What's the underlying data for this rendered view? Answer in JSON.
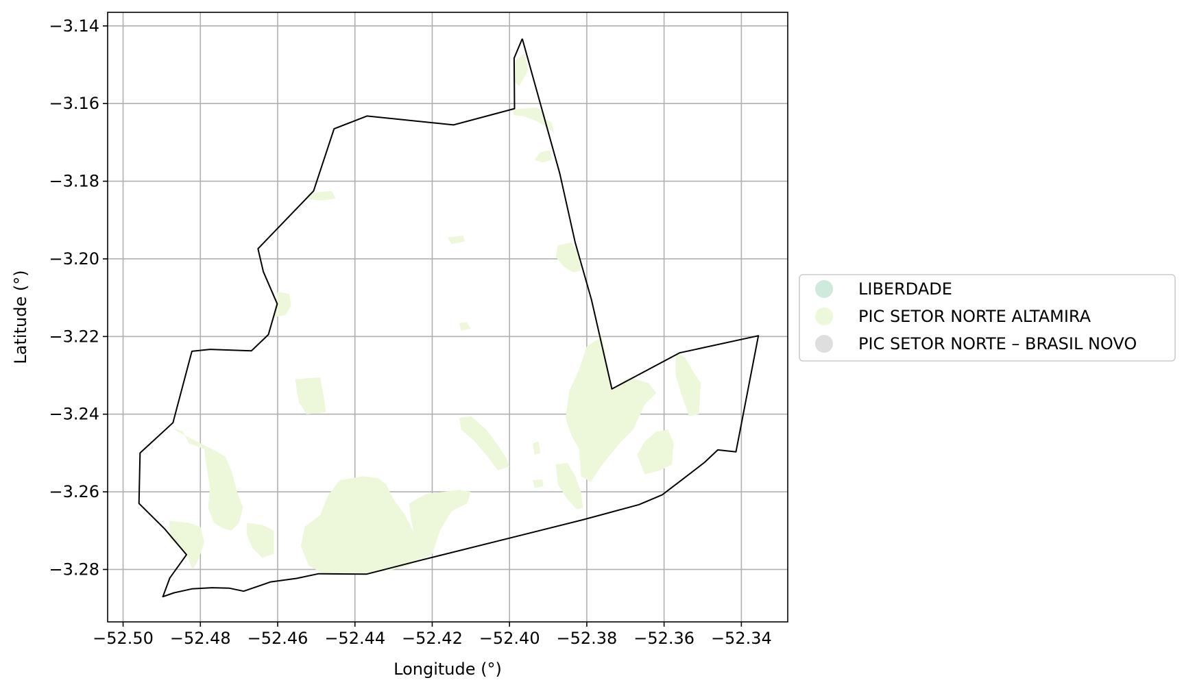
{
  "chart_data": {
    "type": "map",
    "xlabel": "Longitude (°)",
    "ylabel": "Latitude (°)",
    "xlim": [
      -52.504,
      -52.328
    ],
    "ylim": [
      -3.2935,
      -3.1365
    ],
    "grid": true,
    "x_ticks": [
      {
        "value": -52.5,
        "label": "−52.50"
      },
      {
        "value": -52.48,
        "label": "−52.48"
      },
      {
        "value": -52.46,
        "label": "−52.46"
      },
      {
        "value": -52.44,
        "label": "−52.44"
      },
      {
        "value": -52.42,
        "label": "−52.42"
      },
      {
        "value": -52.4,
        "label": "−52.40"
      },
      {
        "value": -52.38,
        "label": "−52.38"
      },
      {
        "value": -52.36,
        "label": "−52.36"
      },
      {
        "value": -52.34,
        "label": "−52.34"
      }
    ],
    "y_ticks": [
      {
        "value": -3.14,
        "label": "−3.14"
      },
      {
        "value": -3.16,
        "label": "−3.16"
      },
      {
        "value": -3.18,
        "label": "−3.18"
      },
      {
        "value": -3.2,
        "label": "−3.20"
      },
      {
        "value": -3.22,
        "label": "−3.22"
      },
      {
        "value": -3.24,
        "label": "−3.24"
      },
      {
        "value": -3.26,
        "label": "−3.26"
      },
      {
        "value": -3.28,
        "label": "−3.28"
      }
    ],
    "legend": {
      "placement": "center-right-outside",
      "entries": [
        {
          "label": "LIBERDADE",
          "color": "#cdeadc"
        },
        {
          "label": "PIC SETOR NORTE ALTAMIRA",
          "color": "#edf8da"
        },
        {
          "label": "PIC SETOR NORTE – BRASIL NOVO",
          "color": "#dedede"
        }
      ]
    },
    "boundary": {
      "color": "#000000",
      "coords": [
        [
          -52.3967,
          -3.1433
        ],
        [
          -52.3988,
          -3.1483
        ],
        [
          -52.3987,
          -3.1613
        ],
        [
          -52.4145,
          -3.1655
        ],
        [
          -52.4369,
          -3.1632
        ],
        [
          -52.4454,
          -3.1665
        ],
        [
          -52.4507,
          -3.1825
        ],
        [
          -52.4651,
          -3.1974
        ],
        [
          -52.4637,
          -3.2033
        ],
        [
          -52.4601,
          -3.2116
        ],
        [
          -52.4624,
          -3.2195
        ],
        [
          -52.4668,
          -3.2237
        ],
        [
          -52.4775,
          -3.2233
        ],
        [
          -52.4822,
          -3.2238
        ],
        [
          -52.4871,
          -3.2422
        ],
        [
          -52.4956,
          -3.25
        ],
        [
          -52.4959,
          -3.263
        ],
        [
          -52.4893,
          -3.2695
        ],
        [
          -52.4836,
          -3.2762
        ],
        [
          -52.4879,
          -3.2822
        ],
        [
          -52.4897,
          -3.287
        ],
        [
          -52.4868,
          -3.286
        ],
        [
          -52.4822,
          -3.285
        ],
        [
          -52.477,
          -3.2847
        ],
        [
          -52.4726,
          -3.2848
        ],
        [
          -52.4688,
          -3.2856
        ],
        [
          -52.4618,
          -3.2832
        ],
        [
          -52.4551,
          -3.2823
        ],
        [
          -52.4494,
          -3.2811
        ],
        [
          -52.437,
          -3.2812
        ],
        [
          -52.4225,
          -3.2775
        ],
        [
          -52.4015,
          -3.2723
        ],
        [
          -52.381,
          -3.2672
        ],
        [
          -52.3665,
          -3.2633
        ],
        [
          -52.3605,
          -3.2608
        ],
        [
          -52.3555,
          -3.257
        ],
        [
          -52.3495,
          -3.2524
        ],
        [
          -52.3461,
          -3.2492
        ],
        [
          -52.3414,
          -3.2497
        ],
        [
          -52.3356,
          -3.2198
        ],
        [
          -52.356,
          -3.2242
        ],
        [
          -52.3735,
          -3.2335
        ],
        [
          -52.3788,
          -3.2105
        ],
        [
          -52.383,
          -3.1958
        ],
        [
          -52.387,
          -3.178
        ],
        [
          -52.3967,
          -3.1433
        ]
      ]
    },
    "polygons": [
      {
        "name": "PIC SETOR NORTE ALTAMIRA",
        "coords": [
          [
            -52.3985,
            -3.149
          ],
          [
            -52.396,
            -3.147
          ],
          [
            -52.3952,
            -3.1515
          ],
          [
            -52.3975,
            -3.1555
          ],
          [
            -52.3988,
            -3.1545
          ]
        ]
      },
      {
        "name": "PIC SETOR NORTE ALTAMIRA",
        "coords": [
          [
            -52.399,
            -3.1615
          ],
          [
            -52.393,
            -3.161
          ],
          [
            -52.391,
            -3.1622
          ],
          [
            -52.3905,
            -3.164
          ],
          [
            -52.389,
            -3.165
          ],
          [
            -52.3885,
            -3.1675
          ],
          [
            -52.3905,
            -3.166
          ],
          [
            -52.393,
            -3.1645
          ],
          [
            -52.3965,
            -3.1632
          ],
          [
            -52.399,
            -3.163
          ]
        ]
      },
      {
        "name": "PIC SETOR NORTE ALTAMIRA",
        "coords": [
          [
            -52.392,
            -3.1725
          ],
          [
            -52.3895,
            -3.172
          ],
          [
            -52.389,
            -3.1745
          ],
          [
            -52.3915,
            -3.1752
          ],
          [
            -52.3935,
            -3.1745
          ]
        ]
      },
      {
        "name": "PIC SETOR NORTE ALTAMIRA",
        "coords": [
          [
            -52.452,
            -3.183
          ],
          [
            -52.446,
            -3.1825
          ],
          [
            -52.445,
            -3.1845
          ],
          [
            -52.449,
            -3.185
          ],
          [
            -52.4525,
            -3.1845
          ]
        ]
      },
      {
        "name": "PIC SETOR NORTE ALTAMIRA",
        "coords": [
          [
            -52.416,
            -3.1945
          ],
          [
            -52.412,
            -3.194
          ],
          [
            -52.4115,
            -3.1955
          ],
          [
            -52.415,
            -3.1962
          ]
        ]
      },
      {
        "name": "PIC SETOR NORTE ALTAMIRA",
        "coords": [
          [
            -52.3875,
            -3.1965
          ],
          [
            -52.384,
            -3.1958
          ],
          [
            -52.3825,
            -3.198
          ],
          [
            -52.3815,
            -3.203
          ],
          [
            -52.3835,
            -3.2035
          ],
          [
            -52.386,
            -3.202
          ],
          [
            -52.388,
            -3.1995
          ]
        ]
      },
      {
        "name": "PIC SETOR NORTE ALTAMIRA",
        "coords": [
          [
            -52.46,
            -3.2085
          ],
          [
            -52.457,
            -3.209
          ],
          [
            -52.4565,
            -3.212
          ],
          [
            -52.458,
            -3.2145
          ],
          [
            -52.461,
            -3.215
          ],
          [
            -52.4605,
            -3.211
          ]
        ]
      },
      {
        "name": "PIC SETOR NORTE ALTAMIRA",
        "coords": [
          [
            -52.413,
            -3.2165
          ],
          [
            -52.411,
            -3.2163
          ],
          [
            -52.41,
            -3.218
          ],
          [
            -52.4125,
            -3.2185
          ]
        ]
      },
      {
        "name": "PIC SETOR NORTE ALTAMIRA",
        "coords": [
          [
            -52.4555,
            -3.231
          ],
          [
            -52.449,
            -3.2305
          ],
          [
            -52.448,
            -3.236
          ],
          [
            -52.4475,
            -3.2395
          ],
          [
            -52.4525,
            -3.24
          ],
          [
            -52.4545,
            -3.237
          ]
        ]
      },
      {
        "name": "PIC SETOR NORTE ALTAMIRA",
        "coords": [
          [
            -52.376,
            -3.22
          ],
          [
            -52.38,
            -3.2225
          ],
          [
            -52.382,
            -3.2285
          ],
          [
            -52.3845,
            -3.234
          ],
          [
            -52.3855,
            -3.241
          ],
          [
            -52.384,
            -3.2455
          ],
          [
            -52.382,
            -3.249
          ],
          [
            -52.3815,
            -3.256
          ],
          [
            -52.379,
            -3.2575
          ],
          [
            -52.376,
            -3.253
          ],
          [
            -52.3715,
            -3.2475
          ],
          [
            -52.368,
            -3.244
          ],
          [
            -52.365,
            -3.2375
          ],
          [
            -52.362,
            -3.2345
          ],
          [
            -52.364,
            -3.232
          ],
          [
            -52.369,
            -3.2305
          ],
          [
            -52.3735,
            -3.2335
          ]
        ]
      },
      {
        "name": "PIC SETOR NORTE ALTAMIRA",
        "coords": [
          [
            -52.357,
            -3.224
          ],
          [
            -52.3545,
            -3.2255
          ],
          [
            -52.3525,
            -3.229
          ],
          [
            -52.3505,
            -3.232
          ],
          [
            -52.351,
            -3.24
          ],
          [
            -52.3535,
            -3.2405
          ],
          [
            -52.3555,
            -3.235
          ],
          [
            -52.357,
            -3.23
          ]
        ]
      },
      {
        "name": "PIC SETOR NORTE ALTAMIRA",
        "coords": [
          [
            -52.413,
            -3.241
          ],
          [
            -52.41,
            -3.2405
          ],
          [
            -52.406,
            -3.244
          ],
          [
            -52.403,
            -3.248
          ],
          [
            -52.401,
            -3.251
          ],
          [
            -52.4,
            -3.2535
          ],
          [
            -52.403,
            -3.2545
          ],
          [
            -52.406,
            -3.2505
          ],
          [
            -52.4095,
            -3.2465
          ],
          [
            -52.4125,
            -3.244
          ]
        ]
      },
      {
        "name": "PIC SETOR NORTE ALTAMIRA",
        "coords": [
          [
            -52.394,
            -3.2475
          ],
          [
            -52.3925,
            -3.247
          ],
          [
            -52.392,
            -3.25
          ],
          [
            -52.3935,
            -3.2505
          ]
        ]
      },
      {
        "name": "PIC SETOR NORTE ALTAMIRA",
        "coords": [
          [
            -52.362,
            -3.2445
          ],
          [
            -52.359,
            -3.244
          ],
          [
            -52.3575,
            -3.2475
          ],
          [
            -52.358,
            -3.253
          ],
          [
            -52.361,
            -3.2545
          ],
          [
            -52.365,
            -3.2555
          ],
          [
            -52.367,
            -3.2505
          ],
          [
            -52.365,
            -3.247
          ]
        ]
      },
      {
        "name": "PIC SETOR NORTE ALTAMIRA",
        "coords": [
          [
            -52.388,
            -3.253
          ],
          [
            -52.385,
            -3.2525
          ],
          [
            -52.383,
            -3.256
          ],
          [
            -52.3815,
            -3.26
          ],
          [
            -52.381,
            -3.264
          ],
          [
            -52.3825,
            -3.2645
          ],
          [
            -52.385,
            -3.262
          ],
          [
            -52.3875,
            -3.258
          ]
        ]
      },
      {
        "name": "PIC SETOR NORTE ALTAMIRA",
        "coords": [
          [
            -52.394,
            -3.257
          ],
          [
            -52.3915,
            -3.2568
          ],
          [
            -52.3912,
            -3.2585
          ],
          [
            -52.3935,
            -3.259
          ]
        ]
      },
      {
        "name": "PIC SETOR NORTE ALTAMIRA",
        "coords": [
          [
            -52.487,
            -3.2435
          ],
          [
            -52.4845,
            -3.2445
          ],
          [
            -52.483,
            -3.2475
          ],
          [
            -52.479,
            -3.249
          ],
          [
            -52.4785,
            -3.253
          ],
          [
            -52.4775,
            -3.259
          ],
          [
            -52.478,
            -3.264
          ],
          [
            -52.4765,
            -3.268
          ],
          [
            -52.474,
            -3.2695
          ],
          [
            -52.472,
            -3.27
          ],
          [
            -52.47,
            -3.268
          ],
          [
            -52.469,
            -3.264
          ],
          [
            -52.4705,
            -3.26
          ],
          [
            -52.472,
            -3.2545
          ],
          [
            -52.4735,
            -3.251
          ],
          [
            -52.476,
            -3.2495
          ],
          [
            -52.479,
            -3.248
          ],
          [
            -52.483,
            -3.246
          ],
          [
            -52.486,
            -3.2445
          ]
        ]
      },
      {
        "name": "PIC SETOR NORTE ALTAMIRA",
        "coords": [
          [
            -52.488,
            -3.2675
          ],
          [
            -52.483,
            -3.268
          ],
          [
            -52.48,
            -3.269
          ],
          [
            -52.479,
            -3.273
          ],
          [
            -52.4805,
            -3.2775
          ],
          [
            -52.482,
            -3.28
          ],
          [
            -52.4836,
            -3.2762
          ],
          [
            -52.488,
            -3.272
          ]
        ]
      },
      {
        "name": "PIC SETOR NORTE ALTAMIRA",
        "coords": [
          [
            -52.468,
            -3.268
          ],
          [
            -52.464,
            -3.2685
          ],
          [
            -52.461,
            -3.27
          ],
          [
            -52.461,
            -3.276
          ],
          [
            -52.464,
            -3.277
          ],
          [
            -52.4665,
            -3.2745
          ],
          [
            -52.468,
            -3.271
          ]
        ]
      },
      {
        "name": "PIC SETOR NORTE ALTAMIRA",
        "coords": [
          [
            -52.444,
            -3.257
          ],
          [
            -52.438,
            -3.256
          ],
          [
            -52.434,
            -3.2565
          ],
          [
            -52.432,
            -3.258
          ],
          [
            -52.43,
            -3.262
          ],
          [
            -52.427,
            -3.266
          ],
          [
            -52.424,
            -3.272
          ],
          [
            -52.421,
            -3.276
          ],
          [
            -52.426,
            -3.279
          ],
          [
            -52.43,
            -3.28
          ],
          [
            -52.436,
            -3.281
          ],
          [
            -52.442,
            -3.2812
          ],
          [
            -52.448,
            -3.2812
          ],
          [
            -52.452,
            -3.279
          ],
          [
            -52.454,
            -3.274
          ],
          [
            -52.453,
            -3.269
          ],
          [
            -52.449,
            -3.266
          ],
          [
            -52.447,
            -3.261
          ]
        ]
      },
      {
        "name": "PIC SETOR NORTE ALTAMIRA",
        "coords": [
          [
            -52.426,
            -3.263
          ],
          [
            -52.4215,
            -3.2605
          ],
          [
            -52.417,
            -3.26
          ],
          [
            -52.413,
            -3.2595
          ],
          [
            -52.41,
            -3.26
          ],
          [
            -52.411,
            -3.263
          ],
          [
            -52.415,
            -3.265
          ],
          [
            -52.418,
            -3.27
          ],
          [
            -52.42,
            -3.276
          ],
          [
            -52.4225,
            -3.2775
          ],
          [
            -52.4245,
            -3.272
          ],
          [
            -52.4255,
            -3.267
          ]
        ]
      }
    ]
  }
}
